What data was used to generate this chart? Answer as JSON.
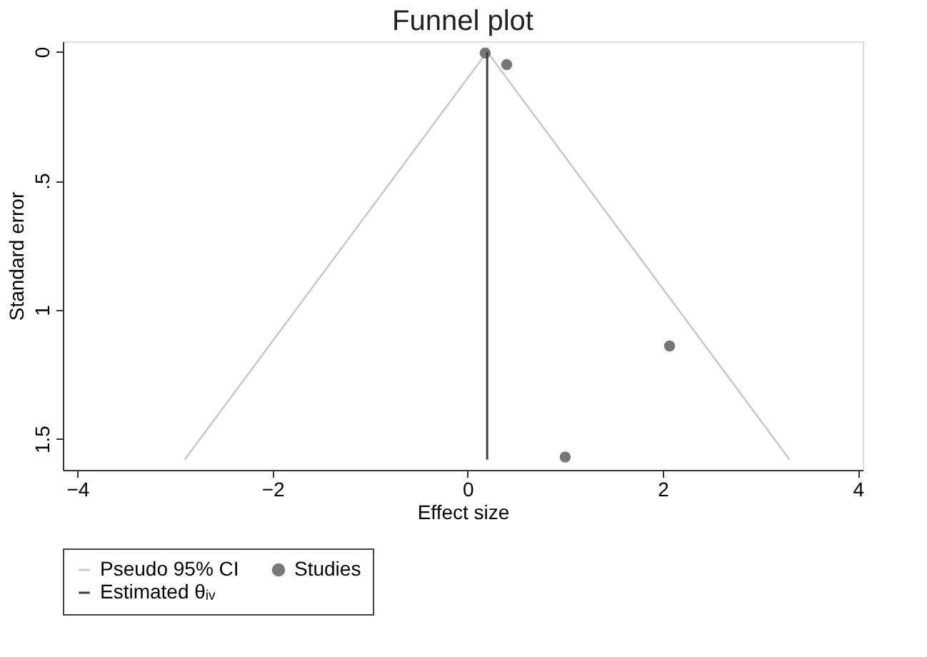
{
  "chart_data": {
    "type": "scatter",
    "title": "Funnel plot",
    "xlabel": "Effect size",
    "ylabel": "Standard error",
    "xlim": [
      -4.15,
      4.05
    ],
    "xticks": [
      -4,
      -2,
      0,
      2,
      4
    ],
    "ylim": [
      1.62,
      -0.04
    ],
    "yticks": [
      0,
      {
        "value": 0.5,
        "label": ".5"
      },
      1,
      1.5
    ],
    "grid": false,
    "legend": "bottom",
    "series": [
      {
        "name": "Pseudo 95% CI",
        "type": "line",
        "color": "#c8c8c8",
        "x": [
          -2.9,
          0.2,
          3.3
        ],
        "values": [
          1.58,
          0,
          1.58
        ]
      },
      {
        "name": "Studies",
        "marker": "circle",
        "color": "#777777",
        "x": [
          0.18,
          0.4,
          2.07,
          1.0
        ],
        "values": [
          0.005,
          0.05,
          1.14,
          1.57
        ]
      },
      {
        "name": "Estimated θᵢᵥ",
        "type": "line",
        "color": "#404040",
        "x": [
          0.2,
          0.2
        ],
        "values": [
          0,
          1.58
        ]
      }
    ]
  }
}
